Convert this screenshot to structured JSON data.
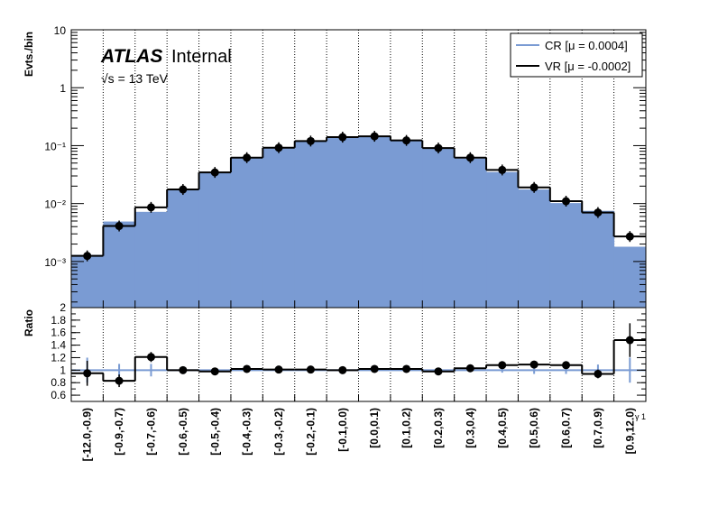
{
  "chart_data": {
    "type": "bar",
    "categories": [
      "[-12.0,-0.9)",
      "[-0.9,-0.7)",
      "[-0.7,-0.6)",
      "[-0.6,-0.5)",
      "[-0.5,-0.4)",
      "[-0.4,-0.3)",
      "[-0.3,-0.2)",
      "[-0.2,-0.1)",
      "[-0.1,0.0)",
      "[0.0,0.1)",
      "[0.1,0.2)",
      "[0.2,0.3)",
      "[0.3,0.4)",
      "[0.4,0.5)",
      "[0.5,0.6)",
      "[0.6,0.7)",
      "[0.7,0.9)",
      "[0.9,12.0)"
    ],
    "bin_edges": [
      -12.0,
      -0.9,
      -0.7,
      -0.6,
      -0.5,
      -0.4,
      -0.3,
      -0.2,
      -0.1,
      0.0,
      0.1,
      0.2,
      0.3,
      0.4,
      0.5,
      0.6,
      0.7,
      0.9,
      12.0
    ],
    "series": [
      {
        "name": "CR [μ = 0.0004]",
        "style": "filled-histogram",
        "color": "#7a9bd3",
        "values": [
          0.0013,
          0.0049,
          0.0072,
          0.0175,
          0.035,
          0.061,
          0.092,
          0.12,
          0.14,
          0.143,
          0.122,
          0.092,
          0.06,
          0.035,
          0.0175,
          0.0102,
          0.0075,
          0.0018
        ]
      },
      {
        "name": "VR [μ = -0.0002]",
        "style": "points-with-line",
        "color": "#000000",
        "values": [
          0.00125,
          0.0041,
          0.0086,
          0.0175,
          0.0345,
          0.062,
          0.092,
          0.12,
          0.14,
          0.145,
          0.123,
          0.091,
          0.062,
          0.038,
          0.019,
          0.011,
          0.007,
          0.0027
        ]
      }
    ],
    "ratio": {
      "values": [
        0.95,
        0.83,
        1.21,
        1.0,
        0.98,
        1.02,
        1.01,
        1.01,
        1.0,
        1.02,
        1.02,
        0.98,
        1.03,
        1.08,
        1.09,
        1.08,
        0.94,
        1.48
      ],
      "errors": [
        0.2,
        0.1,
        0.08,
        0.04,
        0.03,
        0.02,
        0.02,
        0.02,
        0.02,
        0.02,
        0.02,
        0.02,
        0.03,
        0.03,
        0.04,
        0.06,
        0.07,
        0.27
      ],
      "reference_errors": [
        0.2,
        0.1,
        0.1,
        0.03,
        0.02,
        0.02,
        0.02,
        0.02,
        0.02,
        0.02,
        0.02,
        0.02,
        0.02,
        0.04,
        0.06,
        0.06,
        0.09,
        0.2
      ],
      "ylabel": "Ratio",
      "ylim": [
        0.5,
        2.0
      ],
      "yticks": [
        "0.6",
        "0.8",
        "1",
        "1.2",
        "1.4",
        "1.6",
        "1.8",
        "2"
      ]
    },
    "ylabel": "Evts./bin",
    "xlabel": "γ 1",
    "yscale": "log",
    "ylim": [
      0.00016,
      10
    ],
    "yticks": [
      "10⁻³",
      "10⁻²",
      "10⁻¹",
      "1",
      "10"
    ],
    "grid": "vertical dotted at bin edges",
    "legend_placement": "top-right",
    "annotation": {
      "brand": "ATLAS",
      "status": "Internal",
      "energy": "√s = 13 TeV"
    }
  }
}
